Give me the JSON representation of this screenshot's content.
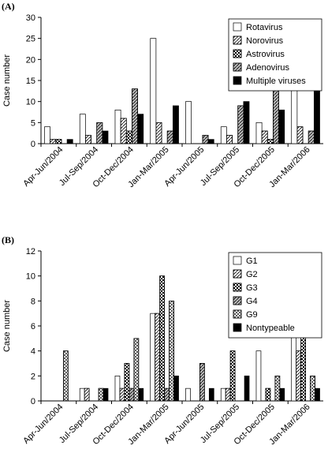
{
  "chart_data": [
    {
      "type": "bar",
      "label": "(A)",
      "ylabel": "Case number",
      "categories": [
        "Apr-Jun/2004",
        "Jul-Sep/2004",
        "Oct-Dec/2004",
        "Jan-Mar/2005",
        "Apr-Jun/2005",
        "Jul-Sep/2005",
        "Oct-Dec/2005",
        "Jan-Mar/2006"
      ],
      "series": [
        {
          "name": "Rotavirus",
          "color": "#ffffff",
          "pattern": "none",
          "values": [
            4,
            7,
            8,
            25,
            10,
            4,
            5,
            15
          ]
        },
        {
          "name": "Norovirus",
          "color": "#ffffff",
          "pattern": "diagonal",
          "values": [
            1,
            2,
            6,
            5,
            0,
            2,
            3,
            4
          ]
        },
        {
          "name": "Astrovirus",
          "color": "#ffffff",
          "pattern": "check",
          "values": [
            1,
            0,
            3,
            0,
            0,
            0,
            1,
            0
          ]
        },
        {
          "name": "Adenovirus",
          "color": "#bbbbbb",
          "pattern": "diagonal",
          "values": [
            0,
            5,
            13,
            3,
            2,
            9,
            16,
            3
          ]
        },
        {
          "name": "Multiple viruses",
          "color": "#000000",
          "pattern": "none",
          "values": [
            1,
            3,
            7,
            9,
            1,
            10,
            8,
            14
          ]
        }
      ],
      "ylim": [
        0,
        30
      ],
      "yticks": [
        0,
        5,
        10,
        15,
        20,
        25,
        30
      ],
      "legend": "upper right"
    },
    {
      "type": "bar",
      "label": "(B)",
      "ylabel": "Case number",
      "categories": [
        "Apr-Jun/2004",
        "Jul-Sep/2004",
        "Oct-Dec/2004",
        "Jan-Mar/2005",
        "Apr-Jun/2005",
        "Jul-Sep/2005",
        "Oct-Dec/2005",
        "Jan-Mar/2006"
      ],
      "series": [
        {
          "name": "G1",
          "color": "#ffffff",
          "pattern": "none",
          "values": [
            0,
            1,
            2,
            7,
            1,
            1,
            4,
            6
          ]
        },
        {
          "name": "G2",
          "color": "#ffffff",
          "pattern": "diagonal",
          "values": [
            0,
            1,
            1,
            7,
            0,
            1,
            0,
            4
          ]
        },
        {
          "name": "G3",
          "color": "#ffffff",
          "pattern": "check",
          "values": [
            0,
            0,
            3,
            10,
            0,
            4,
            1,
            9
          ]
        },
        {
          "name": "G4",
          "color": "#bbbbbb",
          "pattern": "diagonal",
          "values": [
            0,
            0,
            1,
            1,
            3,
            0,
            0,
            0
          ]
        },
        {
          "name": "G9",
          "color": "#ffffff",
          "pattern": "cross",
          "values": [
            4,
            1,
            5,
            8,
            0,
            0,
            2,
            2
          ]
        },
        {
          "name": "Nontypeable",
          "color": "#000000",
          "pattern": "none",
          "values": [
            0,
            1,
            1,
            2,
            1,
            2,
            1,
            1
          ]
        }
      ],
      "ylim": [
        0,
        12
      ],
      "yticks": [
        0,
        2,
        4,
        6,
        8,
        10,
        12
      ],
      "legend": "upper right"
    }
  ]
}
